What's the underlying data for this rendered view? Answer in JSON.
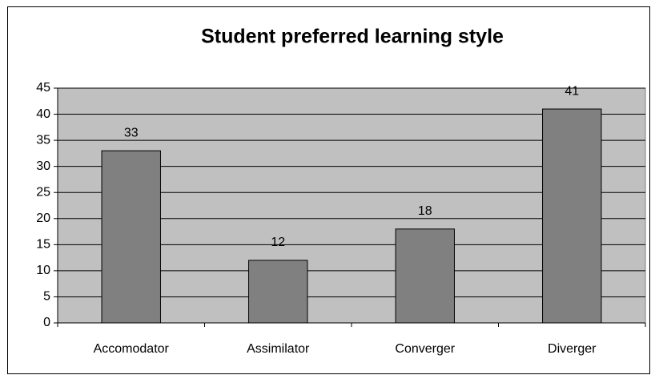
{
  "chart_data": {
    "type": "bar",
    "title": "Student preferred learning style",
    "categories": [
      "Accomodator",
      "Assimilator",
      "Converger",
      "Diverger"
    ],
    "values": [
      33,
      12,
      18,
      41
    ],
    "color": "#808080",
    "plot_background": "#c0c0c0",
    "ylim": [
      0,
      45
    ],
    "yticks": [
      0,
      5,
      10,
      15,
      20,
      25,
      30,
      35,
      40,
      45
    ],
    "grid": true
  }
}
